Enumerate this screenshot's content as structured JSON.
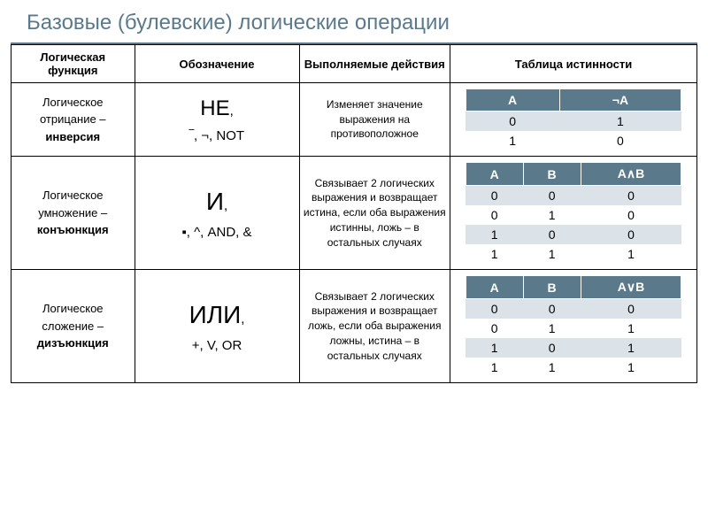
{
  "title": "Базовые (булевские) логические операции",
  "colors": {
    "header_bg": "#5a7a8c",
    "header_text": "#ffffff",
    "alt_row": "#dce3e8",
    "title_color": "#5a7a8c",
    "border": "#000000"
  },
  "main_headers": {
    "col1": "Логическая функция",
    "col2": "Обозначение",
    "col3": "Выполняемые действия",
    "col4": "Таблица истинности"
  },
  "rows": {
    "not": {
      "func_pre": "Логическое отрицание – ",
      "func_bold": "инверсия",
      "notation_big": "НЕ",
      "notation_rest": "‾, ¬, NOT",
      "action": "Изменяет значение выражения на противоположное",
      "truth": {
        "headers": [
          "A",
          "¬A"
        ],
        "rows": [
          [
            "0",
            "1"
          ],
          [
            "1",
            "0"
          ]
        ]
      }
    },
    "and": {
      "func_pre": "Логическое умножение – ",
      "func_bold": "конъюнкция",
      "notation_big": "И",
      "notation_rest": "▪, ^, AND, &",
      "action": "Связывает 2 логических выражения и возвращает истина, если оба выражения истинны, ложь – в остальных случаях",
      "truth": {
        "headers": [
          "A",
          "B",
          "A∧B"
        ],
        "rows": [
          [
            "0",
            "0",
            "0"
          ],
          [
            "0",
            "1",
            "0"
          ],
          [
            "1",
            "0",
            "0"
          ],
          [
            "1",
            "1",
            "1"
          ]
        ]
      }
    },
    "or": {
      "func_pre": "Логическое сложение – ",
      "func_bold": "дизъюнкция",
      "notation_big": "ИЛИ",
      "notation_rest": "+, V, OR",
      "action": "Связывает 2 логических выражения и возвращает ложь, если оба выражения ложны, истина – в остальных случаях",
      "truth": {
        "headers": [
          "A",
          "B",
          "A∨B"
        ],
        "rows": [
          [
            "0",
            "0",
            "0"
          ],
          [
            "0",
            "1",
            "1"
          ],
          [
            "1",
            "0",
            "1"
          ],
          [
            "1",
            "1",
            "1"
          ]
        ]
      }
    }
  }
}
